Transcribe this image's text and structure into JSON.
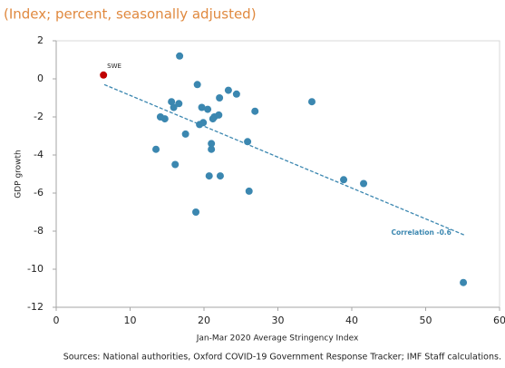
{
  "chart_data": {
    "type": "scatter",
    "subtitle": "(Index; percent, seasonally adjusted)",
    "x_label": "Jan-Mar 2020 Average Stringency Index",
    "y_label": "GDP growth",
    "source": "Sources: National authorities, Oxford COVID-19 Government Response Tracker; IMF Staff calculations.",
    "color": "#3b87b0",
    "x": [
      16.7,
      19.1,
      23.3,
      24.4,
      22.1,
      15.6,
      16.6,
      15.9,
      34.6,
      26.9,
      19.7,
      20.5,
      22.0,
      21.4,
      21.2,
      14.1,
      14.7,
      19.9,
      19.4,
      17.5,
      21.0,
      21.0,
      25.9,
      13.5,
      16.1,
      20.7,
      22.2,
      38.9,
      41.6,
      26.1,
      18.9,
      55.1
    ],
    "y": [
      1.2,
      -0.3,
      -0.6,
      -0.8,
      -1.0,
      -1.2,
      -1.3,
      -1.5,
      -1.2,
      -1.7,
      -1.5,
      -1.6,
      -1.9,
      -2.0,
      -2.1,
      -2.0,
      -2.1,
      -2.3,
      -2.4,
      -2.9,
      -3.4,
      -3.7,
      -3.3,
      -3.7,
      -4.5,
      -5.1,
      -5.1,
      -5.3,
      -5.5,
      -5.9,
      -7.0,
      -10.7
    ],
    "highlight": {
      "label": "SWE",
      "x": 6.4,
      "y": 0.2,
      "color": "#c00000"
    },
    "trendline": {
      "x": [
        6.5,
        55.2
      ],
      "y": [
        -0.3,
        -8.2
      ],
      "color": "#3b87b0",
      "label": "Correlation -0.6"
    },
    "xlim": [
      0,
      60
    ],
    "xticks": [
      0,
      10,
      20,
      30,
      40,
      50,
      60
    ],
    "ylim": [
      -12,
      2
    ],
    "yticks": [
      2,
      0,
      -2,
      -4,
      -6,
      -8,
      -10,
      -12
    ]
  }
}
